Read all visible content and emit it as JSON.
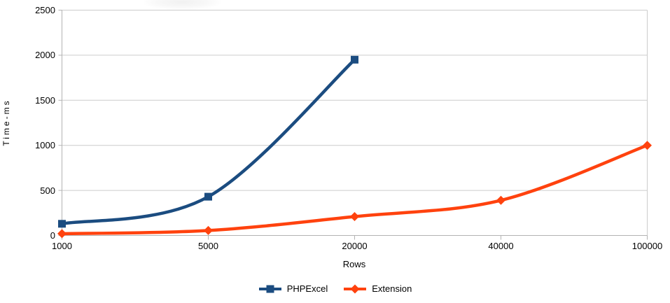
{
  "chart_data": {
    "type": "line",
    "title": "",
    "xlabel": "Rows",
    "ylabel": "Time-ms",
    "categories": [
      "1000",
      "5000",
      "20000",
      "40000",
      "100000"
    ],
    "yticks": [
      0,
      500,
      1000,
      1500,
      2000,
      2500
    ],
    "ylim": [
      0,
      2500
    ],
    "grid": "horizontal-gridlines-on",
    "legend_position": "bottom-center",
    "series": [
      {
        "name": "PHPExcel",
        "color": "#1b4c80",
        "marker": "square",
        "values": [
          130,
          430,
          1950,
          null,
          null
        ]
      },
      {
        "name": "Extension",
        "color": "#ff420e",
        "marker": "diamond",
        "values": [
          20,
          55,
          210,
          390,
          1000
        ]
      }
    ],
    "colors": {
      "gridline": "#cccccc",
      "axis": "#b3b3b3",
      "text": "#000000",
      "background": "#ffffff"
    }
  }
}
